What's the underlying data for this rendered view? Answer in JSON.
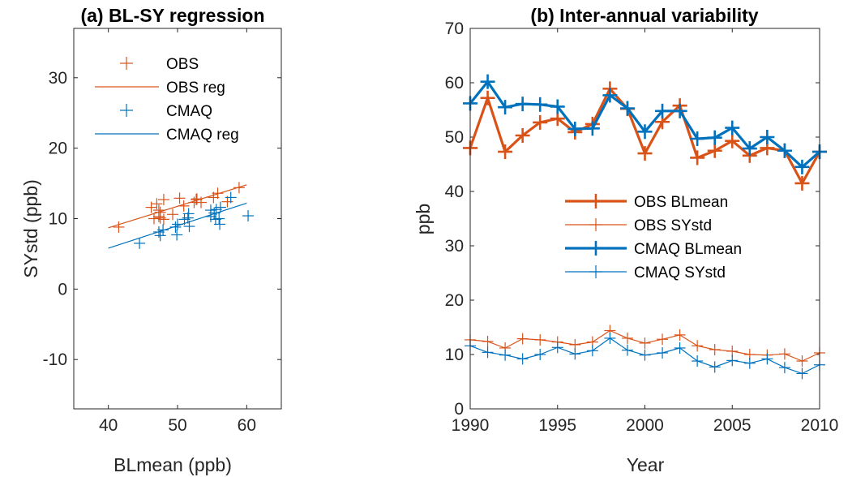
{
  "colors": {
    "obs": "#D95319",
    "cmaq": "#0072BD",
    "axis": "#262626",
    "legend_box": "#FFFFFF"
  },
  "chart_data": [
    {
      "type": "scatter",
      "title": "(a) BL-SY regression",
      "xlabel": "BLmean (ppb)",
      "ylabel": "SYstd (ppb)",
      "xlim": [
        35,
        65
      ],
      "ylim": [
        -17,
        37
      ],
      "xticks": [
        40,
        50,
        60
      ],
      "yticks": [
        -10,
        0,
        10,
        20,
        30
      ],
      "grid": false,
      "legend_position": "top-left",
      "legend": [
        "OBS",
        "OBS reg",
        "CMAQ",
        "CMAQ reg"
      ],
      "series": [
        {
          "name": "OBS",
          "kind": "points",
          "color": "obs",
          "points": [
            [
              48.0,
              12.7
            ],
            [
              57.2,
              12.4
            ],
            [
              47.3,
              11.2
            ],
            [
              50.3,
              12.9
            ],
            [
              52.7,
              12.7
            ],
            [
              53.4,
              12.3
            ],
            [
              50.9,
              11.8
            ],
            [
              52.4,
              12.3
            ],
            [
              58.9,
              14.4
            ],
            [
              55.2,
              13.0
            ],
            [
              47.0,
              12.1
            ],
            [
              52.8,
              12.8
            ],
            [
              55.8,
              13.6
            ],
            [
              46.2,
              11.6
            ],
            [
              47.5,
              10.9
            ],
            [
              49.3,
              10.6
            ],
            [
              46.6,
              10.0
            ],
            [
              48.0,
              9.9
            ],
            [
              47.5,
              10.1
            ],
            [
              41.5,
              8.8
            ],
            [
              47.3,
              10.3
            ]
          ]
        },
        {
          "name": "OBS reg",
          "kind": "line",
          "color": "obs",
          "points": [
            [
              40,
              8.7
            ],
            [
              60,
              14.8
            ]
          ]
        },
        {
          "name": "CMAQ",
          "kind": "points",
          "color": "cmaq",
          "points": [
            [
              56.2,
              11.6
            ],
            [
              60.2,
              10.4
            ],
            [
              55.5,
              9.9
            ],
            [
              56.1,
              9.2
            ],
            [
              56.0,
              10.0
            ],
            [
              55.6,
              11.3
            ],
            [
              51.5,
              10.1
            ],
            [
              51.6,
              10.7
            ],
            [
              57.7,
              13.0
            ],
            [
              55.3,
              10.8
            ],
            [
              51.0,
              9.9
            ],
            [
              54.8,
              10.3
            ],
            [
              54.8,
              11.2
            ],
            [
              49.7,
              8.8
            ],
            [
              49.9,
              7.7
            ],
            [
              51.7,
              8.9
            ],
            [
              47.9,
              8.4
            ],
            [
              50.0,
              9.2
            ],
            [
              47.5,
              7.6
            ],
            [
              44.5,
              6.5
            ],
            [
              47.3,
              8.1
            ]
          ]
        },
        {
          "name": "CMAQ reg",
          "kind": "line",
          "color": "cmaq",
          "points": [
            [
              40,
              5.8
            ],
            [
              60,
              12.2
            ]
          ]
        }
      ]
    },
    {
      "type": "line",
      "title": "(b) Inter-annual variability",
      "xlabel": "Year",
      "ylabel": "ppb",
      "xlim": [
        1990,
        2010
      ],
      "ylim": [
        0,
        70
      ],
      "xticks": [
        1990,
        1995,
        2000,
        2005,
        2010
      ],
      "yticks": [
        0,
        10,
        20,
        30,
        40,
        50,
        60,
        70
      ],
      "grid": false,
      "legend_position": "center",
      "legend": [
        "OBS BLmean",
        "OBS SYstd",
        "CMAQ BLmean",
        "CMAQ SYstd"
      ],
      "x": [
        1990,
        1991,
        1992,
        1993,
        1994,
        1995,
        1996,
        1997,
        1998,
        1999,
        2000,
        2001,
        2002,
        2003,
        2004,
        2005,
        2006,
        2007,
        2008,
        2009,
        2010
      ],
      "series": [
        {
          "name": "OBS BLmean",
          "color": "obs",
          "width": "thick",
          "values": [
            48.0,
            57.2,
            47.3,
            50.3,
            52.7,
            53.4,
            50.9,
            52.4,
            58.9,
            55.2,
            47.0,
            52.8,
            55.8,
            46.2,
            47.5,
            49.3,
            46.6,
            48.0,
            47.5,
            41.5,
            47.3
          ]
        },
        {
          "name": "OBS SYstd",
          "color": "obs",
          "width": "thin",
          "values": [
            12.7,
            12.4,
            11.2,
            12.9,
            12.7,
            12.3,
            11.8,
            12.3,
            14.4,
            13.0,
            12.1,
            12.8,
            13.6,
            11.6,
            10.9,
            10.6,
            10.0,
            9.9,
            10.1,
            8.8,
            10.3
          ]
        },
        {
          "name": "CMAQ BLmean",
          "color": "cmaq",
          "width": "thick",
          "values": [
            56.2,
            60.2,
            55.5,
            56.1,
            56.0,
            55.6,
            51.5,
            51.6,
            57.7,
            55.3,
            51.0,
            54.8,
            54.8,
            49.7,
            49.9,
            51.7,
            47.9,
            50.0,
            47.5,
            44.5,
            47.3
          ]
        },
        {
          "name": "CMAQ SYstd",
          "color": "cmaq",
          "width": "thin",
          "values": [
            11.6,
            10.4,
            9.9,
            9.2,
            10.0,
            11.3,
            10.1,
            10.7,
            13.0,
            10.8,
            9.9,
            10.3,
            11.2,
            8.8,
            7.7,
            8.9,
            8.4,
            9.2,
            7.6,
            6.5,
            8.1
          ]
        }
      ]
    }
  ]
}
